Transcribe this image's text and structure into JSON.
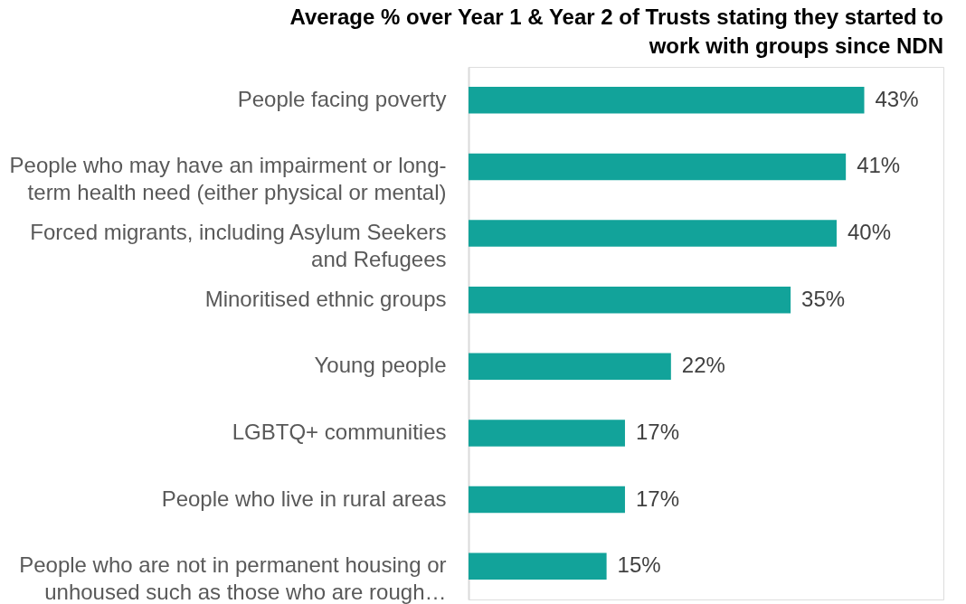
{
  "chart_data": {
    "type": "bar",
    "orientation": "horizontal",
    "title": "Average % over Year 1 & Year 2 of Trusts stating they started to work with groups since NDN",
    "categories": [
      "People facing poverty",
      "People who may have an impairment or long-term health need (either physical or mental)",
      "Forced migrants, including Asylum Seekers and Refugees",
      "Minoritised ethnic groups",
      "Young people",
      "LGBTQ+ communities",
      "People who live in rural areas",
      "People who are not in permanent housing or unhoused such as those who are rough…"
    ],
    "values": [
      43,
      41,
      40,
      35,
      22,
      17,
      17,
      15
    ],
    "value_labels": [
      "43%",
      "41%",
      "40%",
      "35%",
      "22%",
      "17%",
      "17%",
      "15%"
    ],
    "color": "#12a39a"
  }
}
